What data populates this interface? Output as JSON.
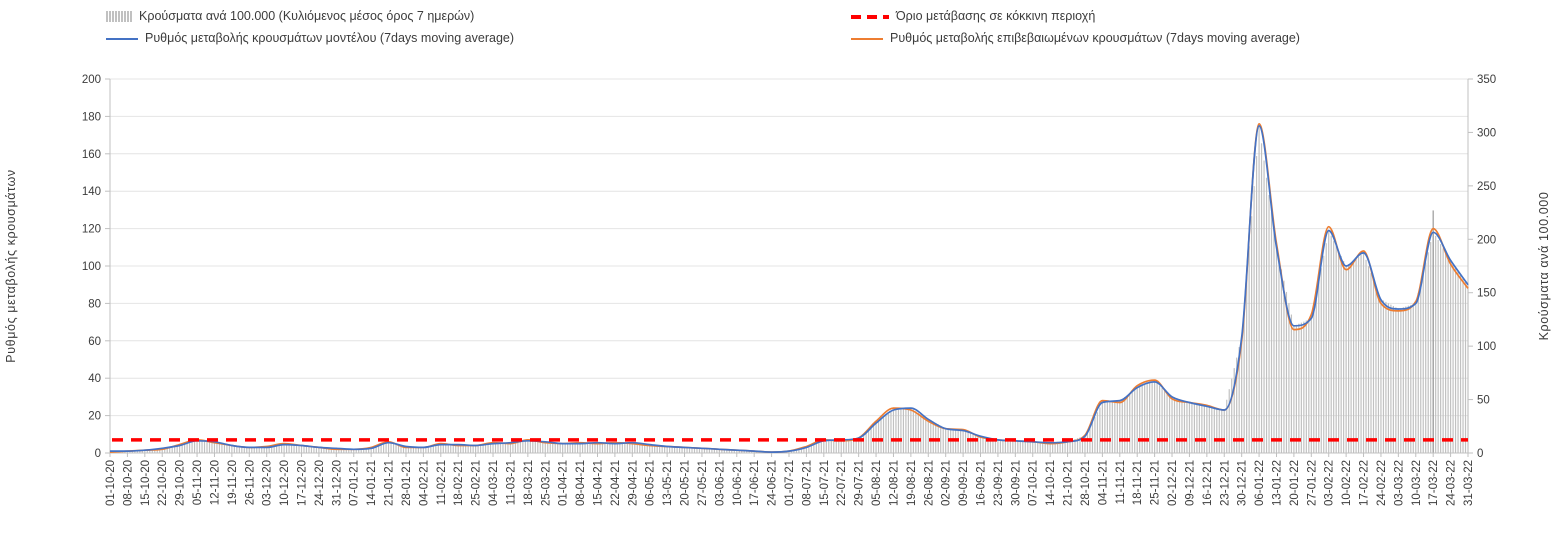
{
  "colors": {
    "bars": "#c1c1c1",
    "model_line": "#4472c4",
    "confirmed_line": "#ed7d31",
    "threshold": "#ff0000",
    "grid": "#e4e4e4",
    "axis": "#c0c0c0",
    "text": "#3c3c3c"
  },
  "chart_data": {
    "type": "bar+line combo, dual y-axis, daily epidemic time series",
    "legend_position": "top",
    "grid": true,
    "categories": [
      "01-10-20",
      "08-10-20",
      "15-10-20",
      "22-10-20",
      "29-10-20",
      "05-11-20",
      "12-11-20",
      "19-11-20",
      "26-11-20",
      "03-12-20",
      "10-12-20",
      "17-12-20",
      "24-12-20",
      "31-12-20",
      "07-01-21",
      "14-01-21",
      "21-01-21",
      "28-01-21",
      "04-02-21",
      "11-02-21",
      "18-02-21",
      "25-02-21",
      "04-03-21",
      "11-03-21",
      "18-03-21",
      "25-03-21",
      "01-04-21",
      "08-04-21",
      "15-04-21",
      "22-04-21",
      "29-04-21",
      "06-05-21",
      "13-05-21",
      "20-05-21",
      "27-05-21",
      "03-06-21",
      "10-06-21",
      "17-06-21",
      "24-06-21",
      "01-07-21",
      "08-07-21",
      "15-07-21",
      "22-07-21",
      "29-07-21",
      "05-08-21",
      "12-08-21",
      "19-08-21",
      "26-08-21",
      "02-09-21",
      "09-09-21",
      "16-09-21",
      "23-09-21",
      "30-09-21",
      "07-10-21",
      "14-10-21",
      "21-10-21",
      "28-10-21",
      "04-11-21",
      "11-11-21",
      "18-11-21",
      "25-11-21",
      "02-12-21",
      "09-12-21",
      "16-12-21",
      "23-12-21",
      "30-12-21",
      "06-01-22",
      "13-01-22",
      "20-01-22",
      "27-01-22",
      "03-02-22",
      "10-02-22",
      "17-02-22",
      "24-02-22",
      "03-03-22",
      "10-03-22",
      "17-03-22",
      "24-03-22",
      "31-03-22"
    ],
    "series": [
      {
        "name": "Ρυθμός μεταβολής κρουσμάτων μοντέλου (7days moving average)",
        "type": "line",
        "axis": "left",
        "color": "#4472c4",
        "values": [
          1,
          1,
          1.5,
          2.5,
          4,
          6.5,
          6,
          4,
          3,
          3,
          4.5,
          4,
          3,
          2.5,
          2,
          2.5,
          5.5,
          3.5,
          3,
          4.5,
          4.5,
          4,
          5,
          5.5,
          6.5,
          6,
          5,
          5,
          5.5,
          5,
          5.5,
          4.5,
          3.5,
          3,
          2.5,
          2,
          1.5,
          1,
          0.5,
          1,
          3,
          6.5,
          7,
          8,
          16,
          23,
          24,
          18,
          13,
          12,
          9,
          7,
          6.5,
          6,
          5.5,
          6,
          9,
          27,
          28,
          35,
          38,
          30,
          27,
          25,
          23,
          62,
          175,
          110,
          68,
          72,
          119,
          100,
          107,
          82,
          77,
          80,
          118,
          103,
          90
        ]
      },
      {
        "name": "Ρυθμός μεταβολής επιβεβαιωμένων κρουσμάτων (7days moving average)",
        "type": "line",
        "axis": "left",
        "color": "#ed7d31",
        "values": [
          0.5,
          1,
          1.5,
          2,
          4.5,
          7,
          5.5,
          4,
          3,
          3.5,
          5,
          4,
          3,
          2,
          2,
          3,
          6,
          3,
          3,
          5,
          4,
          4,
          5.5,
          5,
          7,
          5.5,
          5,
          5.5,
          5,
          5.5,
          5,
          4,
          3.5,
          3,
          2.5,
          2,
          1.5,
          1,
          0.5,
          1,
          3.5,
          7,
          6.5,
          8,
          17,
          24,
          23,
          17,
          13,
          12.5,
          8.5,
          7,
          6.5,
          6,
          5,
          6,
          9.5,
          28,
          27,
          36,
          39,
          29,
          27,
          25.5,
          23,
          60,
          176,
          112,
          66,
          74,
          121,
          98,
          108,
          80,
          76,
          81,
          120,
          101,
          88
        ]
      },
      {
        "name": "Κρούσματα ανά 100.000 (Κυλιόμενος μέσος όρος 7 ημερών)",
        "type": "bar",
        "axis": "right",
        "color": "#c1c1c1",
        "values": [
          2,
          2,
          3,
          4,
          7,
          11,
          11,
          7,
          5,
          5,
          8,
          7,
          5,
          4,
          4,
          4,
          10,
          6,
          5,
          8,
          8,
          7,
          9,
          10,
          11,
          11,
          9,
          9,
          10,
          9,
          10,
          8,
          6,
          5,
          4,
          4,
          3,
          2,
          1,
          2,
          5,
          11,
          12,
          14,
          28,
          40,
          42,
          32,
          23,
          21,
          16,
          12,
          11,
          11,
          10,
          11,
          16,
          47,
          49,
          61,
          67,
          53,
          47,
          44,
          40,
          109,
          306,
          193,
          119,
          126,
          208,
          175,
          187,
          144,
          135,
          140,
          207,
          180,
          158
        ]
      }
    ],
    "threshold": {
      "name": "Όριο μετάβασης σε κόκκινη περιοχή",
      "axis": "left",
      "value": 7,
      "color": "#ff0000",
      "style": "dashed"
    },
    "outliers": [
      {
        "category": "17-03-22",
        "axis": "right",
        "value": 227
      }
    ],
    "left_axis": {
      "title": "Ρυθμός μεταβολής κρουσμάτων",
      "min": 0,
      "max": 200,
      "step": 20
    },
    "right_axis": {
      "title": "Κρούσματα ανά 100.000",
      "min": 0,
      "max": 350,
      "step": 50
    }
  }
}
